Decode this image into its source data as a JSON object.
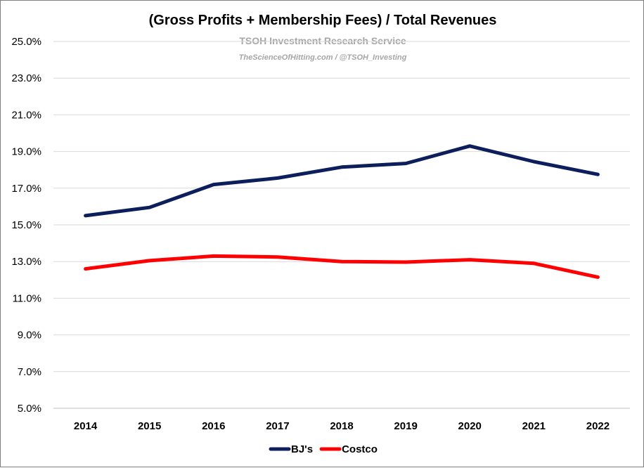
{
  "chart_data": {
    "type": "line",
    "title": "(Gross Profits + Membership Fees) / Total Revenues",
    "watermark": {
      "line1": "TSOH Investment Research Service",
      "line2": "TheScienceOfHitting.com / @TSOH_Investing"
    },
    "categories": [
      "2014",
      "2015",
      "2016",
      "2017",
      "2018",
      "2019",
      "2020",
      "2021",
      "2022"
    ],
    "series": [
      {
        "name": "BJ's",
        "color": "#0c1f5c",
        "values": [
          15.5,
          15.95,
          17.2,
          17.55,
          18.15,
          18.35,
          19.3,
          18.45,
          17.75
        ]
      },
      {
        "name": "Costco",
        "color": "#ff0000",
        "values": [
          12.6,
          13.05,
          13.3,
          13.25,
          13.0,
          12.97,
          13.1,
          12.9,
          12.15
        ]
      }
    ],
    "ylim": [
      5.0,
      25.0
    ],
    "yticks": [
      "5.0%",
      "7.0%",
      "9.0%",
      "11.0%",
      "13.0%",
      "15.0%",
      "17.0%",
      "19.0%",
      "21.0%",
      "23.0%",
      "25.0%"
    ],
    "grid": true,
    "legend_position": "bottom"
  }
}
